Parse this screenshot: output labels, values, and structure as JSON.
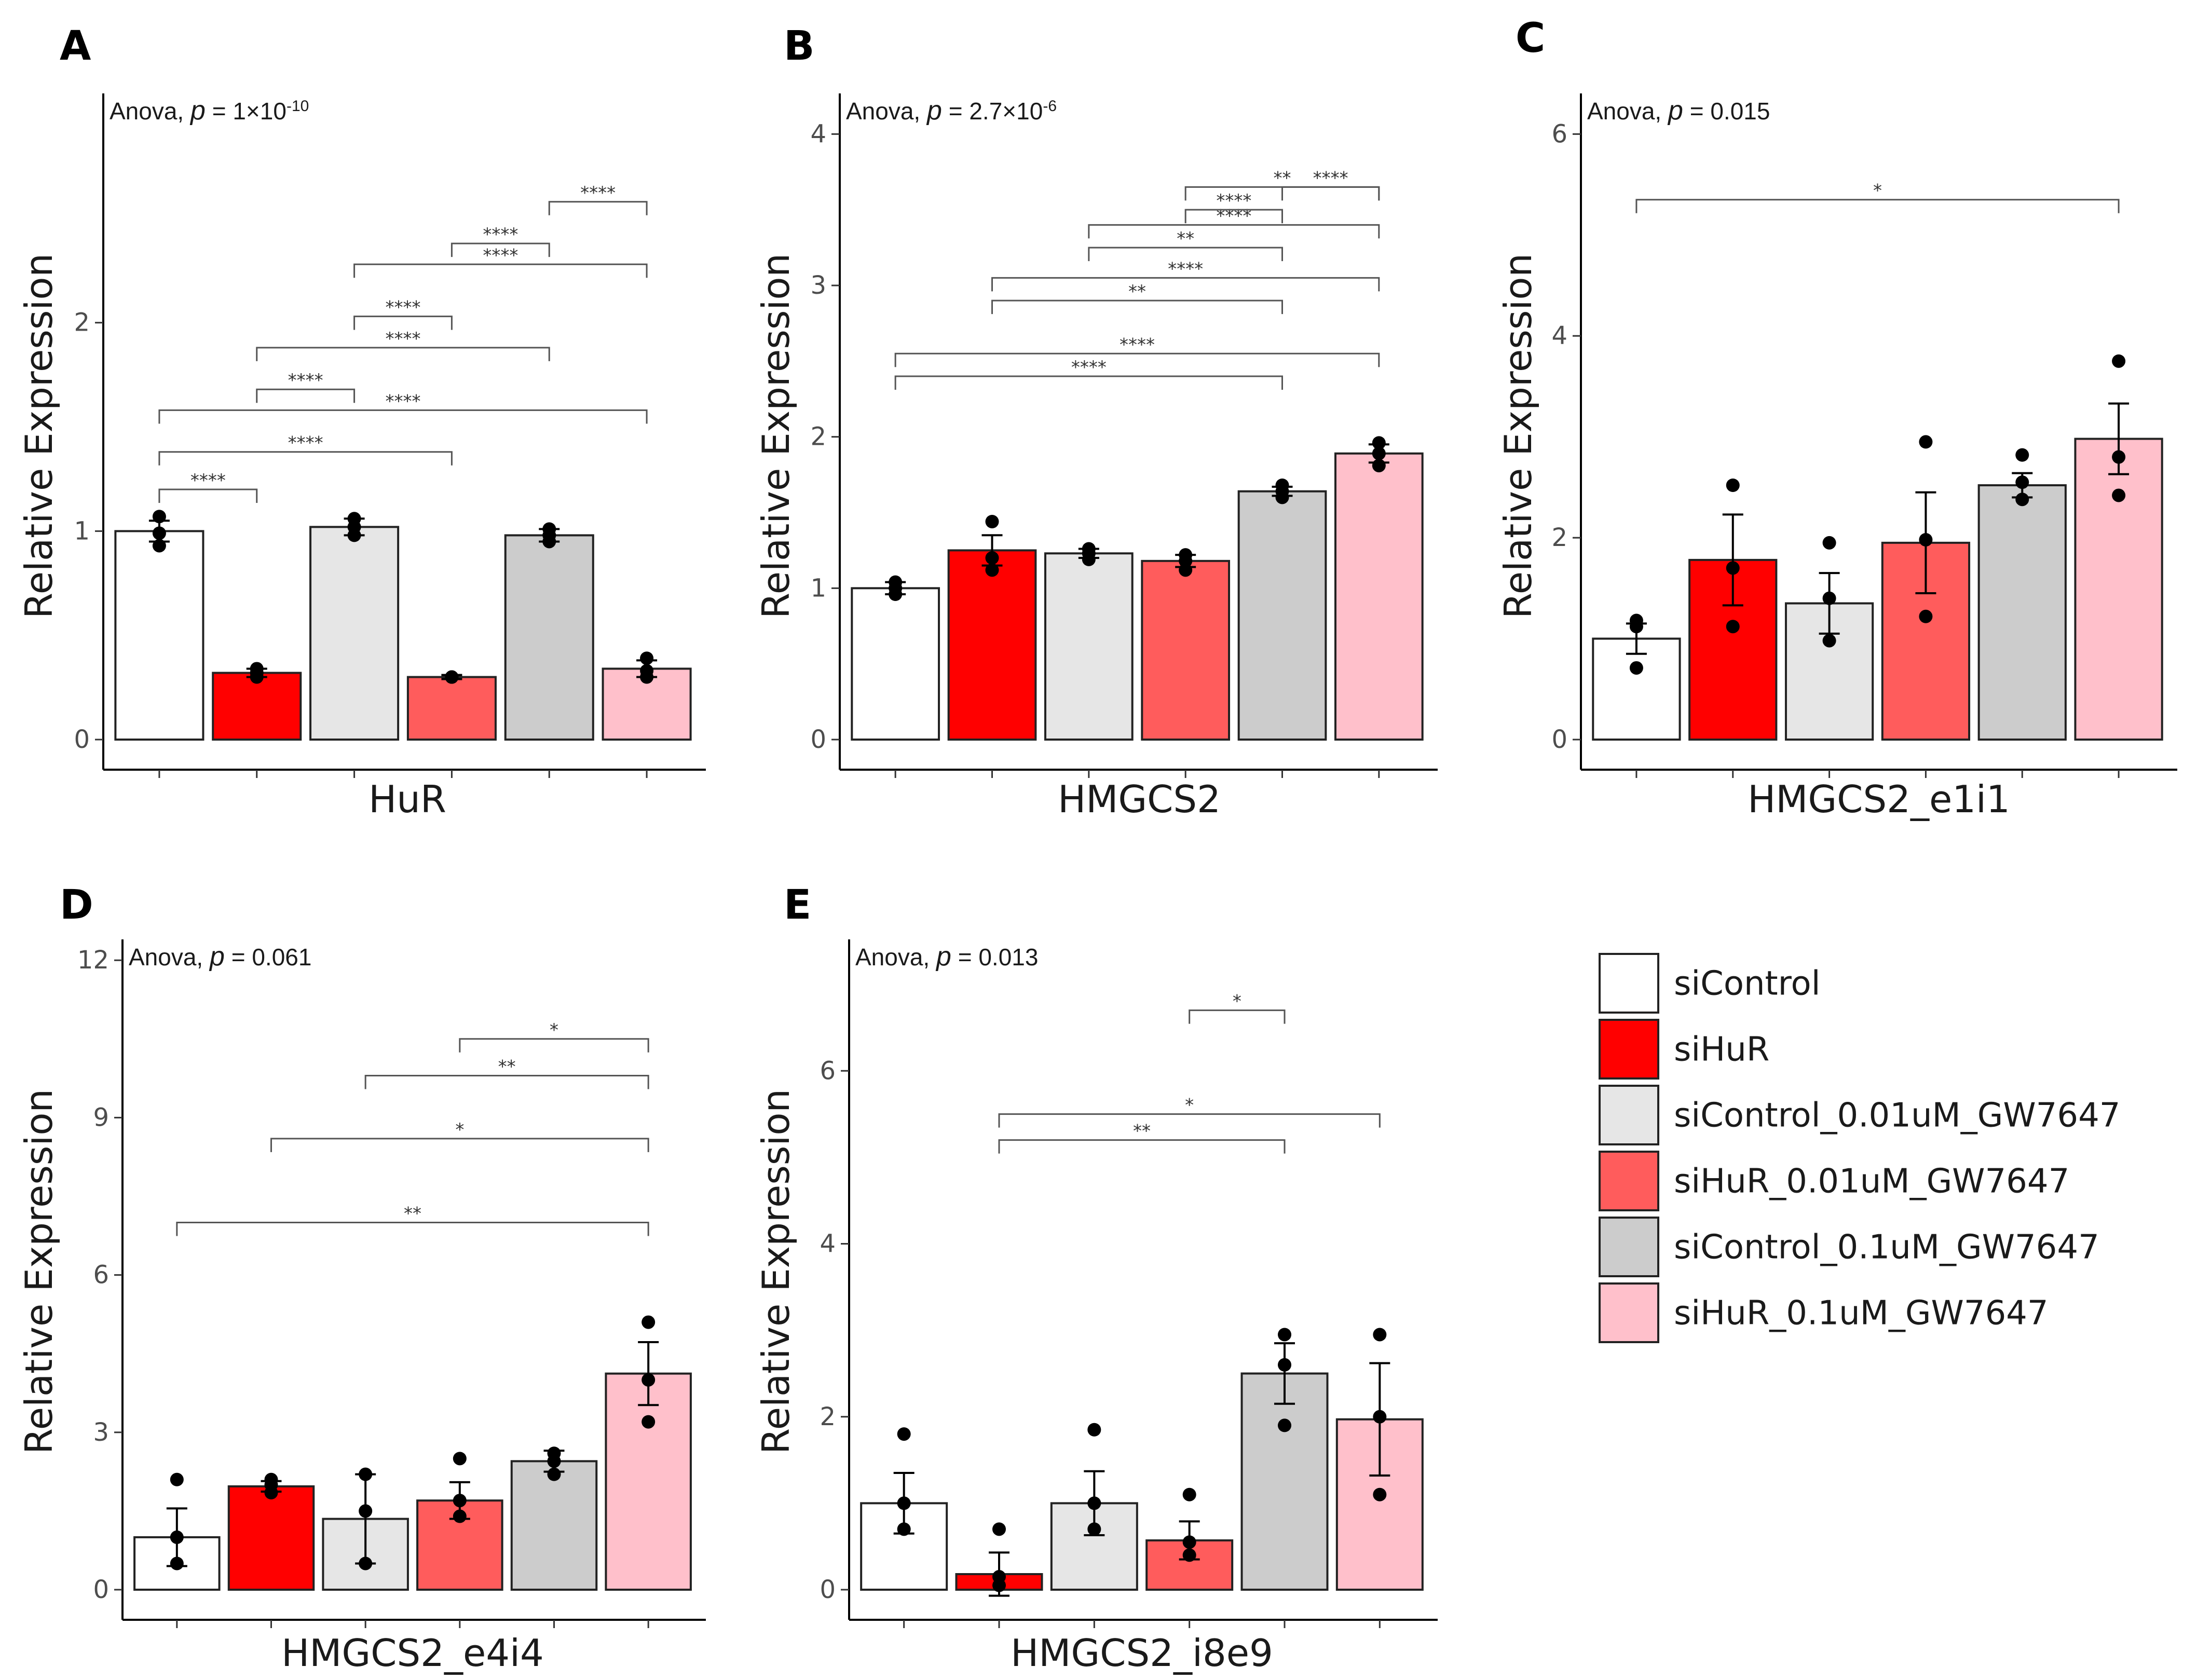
{
  "legend": {
    "title": "",
    "items": [
      {
        "label": "siControl",
        "color": "#FFFFFF"
      },
      {
        "label": "siHuR",
        "color": "#FF0000"
      },
      {
        "label": "siControl_0.01uM_GW7647",
        "color": "#E6E6E6"
      },
      {
        "label": "siHuR_0.01uM_GW7647",
        "color": "#FF5C5C"
      },
      {
        "label": "siControl_0.1uM_GW7647",
        "color": "#CCCCCC"
      },
      {
        "label": "siHuR_0.1uM_GW7647",
        "color": "#FFC0CB"
      }
    ]
  },
  "chart_data": [
    {
      "panel": "A",
      "type": "bar",
      "title": "",
      "xlabel": "HuR",
      "ylabel": "Relative Expression",
      "anova": {
        "prefix": "Anova, ",
        "p": "p",
        "eq": " = 1×10",
        "exp": "-10"
      },
      "ylim": [
        0,
        3.05
      ],
      "yticks": [
        0,
        1,
        2
      ],
      "ytick_labels": [
        "0",
        "1",
        "2"
      ],
      "values": [
        1.0,
        0.32,
        1.02,
        0.3,
        0.98,
        0.34
      ],
      "errors": [
        0.05,
        0.02,
        0.04,
        0.01,
        0.03,
        0.04
      ],
      "points": [
        [
          0.93,
          0.99,
          1.07
        ],
        [
          0.3,
          0.32,
          0.34
        ],
        [
          0.98,
          1.02,
          1.06
        ],
        [
          0.3,
          0.3,
          0.3
        ],
        [
          0.95,
          0.98,
          1.01
        ],
        [
          0.3,
          0.33,
          0.39
        ]
      ],
      "comparisons": [
        {
          "g1": 1,
          "g2": 2,
          "label": "****",
          "y": 1.2
        },
        {
          "g1": 1,
          "g2": 4,
          "label": "****",
          "y": 1.38
        },
        {
          "g1": 1,
          "g2": 6,
          "label": "****",
          "y": 1.58
        },
        {
          "g1": 2,
          "g2": 3,
          "label": "****",
          "y": 1.68
        },
        {
          "g1": 2,
          "g2": 5,
          "label": "****",
          "y": 1.88
        },
        {
          "g1": 3,
          "g2": 4,
          "label": "****",
          "y": 2.03
        },
        {
          "g1": 3,
          "g2": 6,
          "label": "****",
          "y": 2.28
        },
        {
          "g1": 4,
          "g2": 5,
          "label": "****",
          "y": 2.38
        },
        {
          "g1": 5,
          "g2": 6,
          "label": "****",
          "y": 2.58
        }
      ]
    },
    {
      "panel": "B",
      "type": "bar",
      "title": "",
      "xlabel": "HMGCS2",
      "ylabel": "Relative Expression",
      "anova": {
        "prefix": "Anova, ",
        "p": "p",
        "eq": " = 2.7×10",
        "exp": "-6"
      },
      "ylim": [
        0,
        4.2
      ],
      "yticks": [
        0,
        1,
        2,
        3,
        4
      ],
      "ytick_labels": [
        "0",
        "1",
        "2",
        "3",
        "4"
      ],
      "values": [
        1.0,
        1.25,
        1.23,
        1.18,
        1.64,
        1.89
      ],
      "errors": [
        0.04,
        0.1,
        0.03,
        0.04,
        0.03,
        0.06
      ],
      "points": [
        [
          0.96,
          1.0,
          1.04
        ],
        [
          1.12,
          1.2,
          1.44
        ],
        [
          1.19,
          1.23,
          1.26
        ],
        [
          1.12,
          1.18,
          1.22
        ],
        [
          1.6,
          1.64,
          1.68
        ],
        [
          1.81,
          1.89,
          1.96
        ]
      ],
      "comparisons": [
        {
          "g1": 1,
          "g2": 5,
          "label": "****",
          "y": 2.4
        },
        {
          "g1": 1,
          "g2": 6,
          "label": "****",
          "y": 2.55
        },
        {
          "g1": 2,
          "g2": 5,
          "label": "**",
          "y": 2.9
        },
        {
          "g1": 2,
          "g2": 6,
          "label": "****",
          "y": 3.05
        },
        {
          "g1": 3,
          "g2": 5,
          "label": "**",
          "y": 3.25
        },
        {
          "g1": 3,
          "g2": 6,
          "label": "****",
          "y": 3.4
        },
        {
          "g1": 4,
          "g2": 5,
          "label": "****",
          "y": 3.5
        },
        {
          "g1": 4,
          "g2": 6,
          "label": "**",
          "y": 3.65
        },
        {
          "g1": 5,
          "g2": 6,
          "label": "****",
          "y": 3.65
        }
      ]
    },
    {
      "panel": "C",
      "type": "bar",
      "title": "",
      "xlabel": "HMGCS2_e1i1",
      "ylabel": "Relative Expression",
      "anova": {
        "prefix": "Anova, ",
        "p": "p",
        "eq": " = 0.015",
        "exp": ""
      },
      "ylim": [
        0,
        6.3
      ],
      "yticks": [
        0,
        2,
        4,
        6
      ],
      "ytick_labels": [
        "0",
        "2",
        "4",
        "6"
      ],
      "values": [
        1.0,
        1.78,
        1.35,
        1.95,
        2.52,
        2.98
      ],
      "errors": [
        0.15,
        0.45,
        0.3,
        0.5,
        0.12,
        0.35
      ],
      "points": [
        [
          0.71,
          1.12,
          1.18
        ],
        [
          1.12,
          1.7,
          2.52
        ],
        [
          0.98,
          1.4,
          1.95
        ],
        [
          1.22,
          1.98,
          2.95
        ],
        [
          2.38,
          2.55,
          2.82
        ],
        [
          2.42,
          2.8,
          3.75
        ]
      ],
      "comparisons": [
        {
          "g1": 1,
          "g2": 6,
          "label": "*",
          "y": 5.35
        }
      ]
    },
    {
      "panel": "D",
      "type": "bar",
      "title": "",
      "xlabel": "HMGCS2_e4i4",
      "ylabel": "Relative Expression",
      "anova": {
        "prefix": "Anova, ",
        "p": "p",
        "eq": " = 0.061",
        "exp": ""
      },
      "ylim": [
        0,
        12.2
      ],
      "yticks": [
        0,
        3,
        6,
        9,
        12
      ],
      "ytick_labels": [
        "0",
        "3",
        "6",
        "9",
        "12"
      ],
      "values": [
        1.0,
        1.97,
        1.35,
        1.7,
        2.45,
        4.12
      ],
      "errors": [
        0.55,
        0.1,
        0.85,
        0.35,
        0.2,
        0.6
      ],
      "points": [
        [
          0.5,
          1.0,
          2.1
        ],
        [
          1.85,
          2.0,
          2.1
        ],
        [
          0.5,
          1.5,
          2.2
        ],
        [
          1.4,
          1.7,
          2.5
        ],
        [
          2.2,
          2.45,
          2.6
        ],
        [
          3.2,
          4.0,
          5.1
        ]
      ],
      "comparisons": [
        {
          "g1": 1,
          "g2": 6,
          "label": "**",
          "y": 7.0
        },
        {
          "g1": 2,
          "g2": 6,
          "label": "*",
          "y": 8.6
        },
        {
          "g1": 3,
          "g2": 6,
          "label": "**",
          "y": 9.8
        },
        {
          "g1": 4,
          "g2": 6,
          "label": "*",
          "y": 10.5
        }
      ]
    },
    {
      "panel": "E",
      "type": "bar",
      "title": "",
      "xlabel": "HMGCS2_i8e9",
      "ylabel": "Relative Expression",
      "anova": {
        "prefix": "Anova, ",
        "p": "p",
        "eq": " = 0.013",
        "exp": ""
      },
      "ylim": [
        0,
        7.4
      ],
      "yticks": [
        0,
        2,
        4,
        6
      ],
      "ytick_labels": [
        "0",
        "2",
        "4",
        "6"
      ],
      "values": [
        1.0,
        0.18,
        1.0,
        0.57,
        2.5,
        1.97
      ],
      "errors": [
        0.35,
        0.25,
        0.37,
        0.22,
        0.35,
        0.65
      ],
      "points": [
        [
          0.7,
          1.0,
          1.8
        ],
        [
          0.05,
          0.15,
          0.7
        ],
        [
          0.7,
          1.0,
          1.85
        ],
        [
          0.4,
          0.55,
          1.1
        ],
        [
          1.9,
          2.6,
          2.95
        ],
        [
          1.1,
          2.0,
          2.95
        ]
      ],
      "comparisons": [
        {
          "g1": 2,
          "g2": 5,
          "label": "**",
          "y": 5.2
        },
        {
          "g1": 2,
          "g2": 6,
          "label": "*",
          "y": 5.5
        },
        {
          "g1": 4,
          "g2": 5,
          "label": "*",
          "y": 6.7
        }
      ]
    }
  ]
}
